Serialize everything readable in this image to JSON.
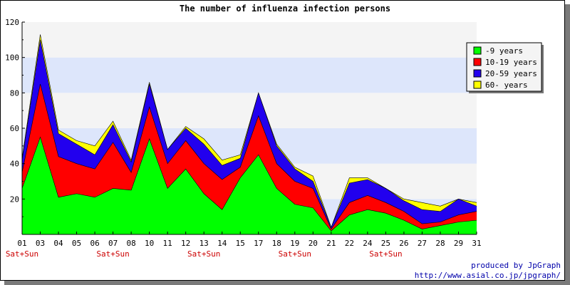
{
  "colors": {
    "band_light_blue": "#dde6fb",
    "band_light_gray": "#f4f4f4",
    "weekend_label": "#cc0000",
    "credit_text": "#0000aa"
  },
  "chart_data": {
    "type": "area",
    "stacked": true,
    "title": "The number of influenza infection persons",
    "xlabel": "",
    "ylabel": "",
    "ylim": [
      0,
      120
    ],
    "yticks": [
      20,
      40,
      60,
      80,
      100,
      120
    ],
    "y_axis_label_top": "120",
    "grid": "alternating horizontal bands",
    "legend_position": "right",
    "categories": [
      "01",
      "03",
      "04",
      "05",
      "06",
      "07",
      "08",
      "10",
      "11",
      "12",
      "13",
      "14",
      "15",
      "17",
      "18",
      "19",
      "20",
      "21",
      "22",
      "24",
      "25",
      "26",
      "27",
      "28",
      "29",
      "31"
    ],
    "weekend_label": "Sat+Sun",
    "weekend_categories": [
      "01",
      "07",
      "13",
      "19",
      "25"
    ],
    "series": [
      {
        "name": "-9 years",
        "color": "#00ff00",
        "values": [
          26,
          55,
          21,
          23,
          21,
          26,
          25,
          54,
          26,
          37,
          23,
          14,
          32,
          45,
          26,
          17,
          15,
          2,
          11,
          14,
          12,
          8,
          3,
          5,
          7,
          8
        ]
      },
      {
        "name": "10-19 years",
        "color": "#ff0000",
        "values": [
          9,
          30,
          23,
          17,
          16,
          26,
          10,
          18,
          14,
          16,
          17,
          17,
          6,
          22,
          14,
          13,
          11,
          1,
          7,
          8,
          6,
          5,
          3,
          2,
          4,
          5
        ]
      },
      {
        "name": "20-59 years",
        "color": "#2200ee",
        "values": [
          7,
          25,
          13,
          11,
          8,
          10,
          6,
          13,
          8,
          7,
          11,
          8,
          5,
          13,
          10,
          7,
          4,
          1,
          11,
          9,
          8,
          6,
          8,
          6,
          9,
          3
        ]
      },
      {
        "name": "60- years",
        "color": "#ffff00",
        "values": [
          1,
          3,
          2,
          2,
          5,
          2,
          1,
          1,
          0,
          1,
          3,
          3,
          2,
          0,
          1,
          1,
          3,
          0,
          3,
          1,
          0,
          1,
          4,
          3,
          0,
          2
        ]
      }
    ]
  },
  "credits": {
    "line1": "produced by JpGraph",
    "line2": "http://www.asial.co.jp/jpgraph/"
  }
}
